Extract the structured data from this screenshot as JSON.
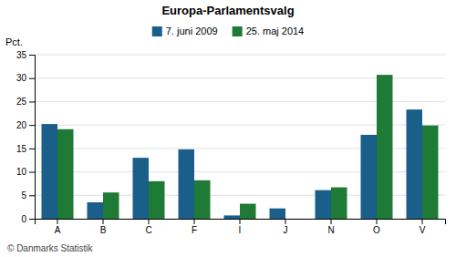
{
  "chart_data": {
    "type": "bar",
    "title": "Europa-Parlamentsvalg",
    "categories": [
      "A",
      "B",
      "C",
      "F",
      "I",
      "J",
      "N",
      "O",
      "V"
    ],
    "series": [
      {
        "name": "7. juni 2009",
        "color": "#1a5e8a",
        "values": [
          20.2,
          3.5,
          13.0,
          14.8,
          0.7,
          2.2,
          6.1,
          17.9,
          23.3
        ]
      },
      {
        "name": "25. maj 2014",
        "color": "#1e7a34",
        "values": [
          19.1,
          5.6,
          8.0,
          8.2,
          3.2,
          0.0,
          6.7,
          30.7,
          19.9
        ]
      }
    ],
    "ylabel": "Pct.",
    "ylim": [
      0,
      35
    ],
    "yticks": [
      0,
      5,
      10,
      15,
      20,
      25,
      30,
      35
    ],
    "grid": true,
    "legend": "top",
    "footer": "© Danmarks Statistik"
  }
}
